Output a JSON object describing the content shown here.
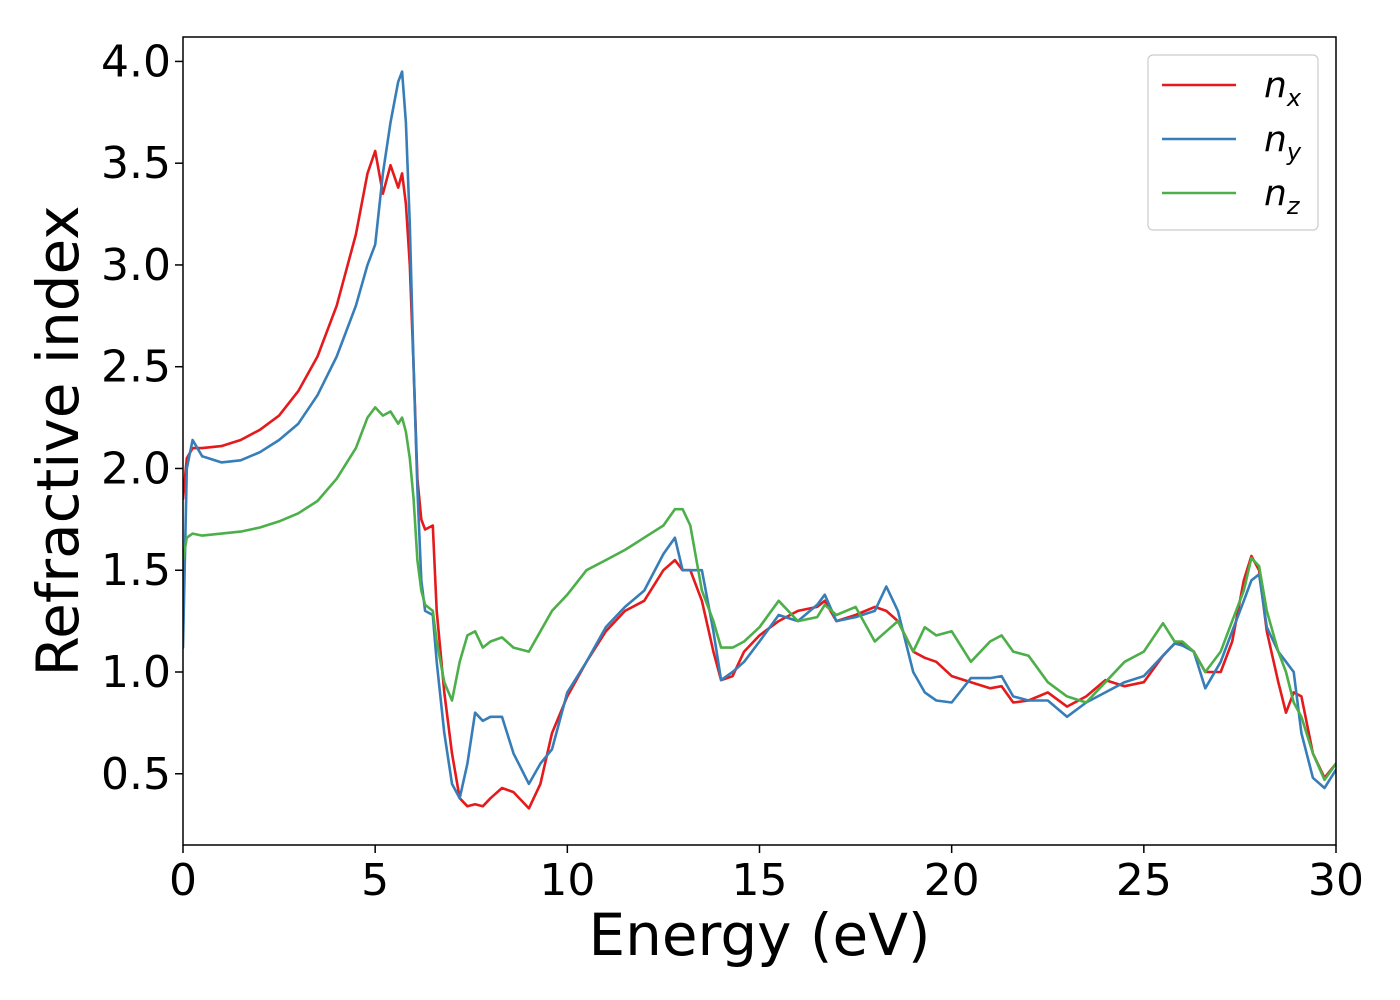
{
  "chart_data": {
    "type": "line",
    "title": "",
    "xlabel": "Energy (eV)",
    "ylabel": "Refractive index",
    "xlim": [
      0,
      30
    ],
    "ylim": [
      0.15,
      4.12
    ],
    "xticks": [
      0,
      5,
      10,
      15,
      20,
      25,
      30
    ],
    "xtick_labels": [
      "0",
      "5",
      "10",
      "15",
      "20",
      "25",
      "30"
    ],
    "yticks": [
      0.5,
      1.0,
      1.5,
      2.0,
      2.5,
      3.0,
      3.5,
      4.0
    ],
    "ytick_labels": [
      "0.5",
      "1.0",
      "1.5",
      "2.0",
      "2.5",
      "3.0",
      "3.5",
      "4.0"
    ],
    "grid": false,
    "legend_position": "top-right",
    "series": [
      {
        "name": "n",
        "subscript": "x",
        "color": "#e41a1c",
        "x": [
          0,
          0.1,
          0.25,
          0.5,
          1,
          1.5,
          2,
          2.5,
          3,
          3.5,
          4,
          4.5,
          4.8,
          5.0,
          5.2,
          5.4,
          5.6,
          5.7,
          5.8,
          5.9,
          6.0,
          6.1,
          6.2,
          6.3,
          6.5,
          6.6,
          6.8,
          7.0,
          7.2,
          7.4,
          7.6,
          7.8,
          8.0,
          8.3,
          8.6,
          9.0,
          9.3,
          9.6,
          10,
          10.5,
          11,
          11.5,
          12,
          12.5,
          12.8,
          13.0,
          13.2,
          13.5,
          13.8,
          14.0,
          14.3,
          14.6,
          15.0,
          15.5,
          16.0,
          16.5,
          16.7,
          17.0,
          17.5,
          18.0,
          18.3,
          18.6,
          19.0,
          19.3,
          19.6,
          20.0,
          20.5,
          21.0,
          21.3,
          21.6,
          22.0,
          22.5,
          23.0,
          23.5,
          24.0,
          24.5,
          25.0,
          25.5,
          25.8,
          26.0,
          26.3,
          26.6,
          27.0,
          27.3,
          27.6,
          27.8,
          28.0,
          28.2,
          28.5,
          28.7,
          28.9,
          29.1,
          29.4,
          29.7,
          30
        ],
        "y": [
          1.85,
          2.05,
          2.1,
          2.1,
          2.11,
          2.14,
          2.19,
          2.26,
          2.38,
          2.55,
          2.8,
          3.15,
          3.45,
          3.56,
          3.35,
          3.49,
          3.38,
          3.45,
          3.3,
          3.0,
          2.5,
          1.95,
          1.75,
          1.7,
          1.72,
          1.3,
          0.9,
          0.6,
          0.38,
          0.34,
          0.35,
          0.34,
          0.38,
          0.43,
          0.41,
          0.33,
          0.45,
          0.7,
          0.88,
          1.05,
          1.2,
          1.3,
          1.35,
          1.5,
          1.55,
          1.5,
          1.5,
          1.35,
          1.1,
          0.96,
          0.98,
          1.1,
          1.18,
          1.25,
          1.3,
          1.32,
          1.35,
          1.25,
          1.28,
          1.32,
          1.3,
          1.25,
          1.1,
          1.07,
          1.05,
          0.98,
          0.95,
          0.92,
          0.93,
          0.85,
          0.86,
          0.9,
          0.83,
          0.88,
          0.96,
          0.93,
          0.95,
          1.08,
          1.14,
          1.14,
          1.1,
          1.0,
          1.0,
          1.15,
          1.45,
          1.57,
          1.5,
          1.2,
          0.95,
          0.8,
          0.9,
          0.88,
          0.6,
          0.48,
          0.55
        ]
      },
      {
        "name": "n",
        "subscript": "y",
        "color": "#377eb8",
        "x": [
          0,
          0.1,
          0.25,
          0.5,
          1,
          1.5,
          2,
          2.5,
          3,
          3.5,
          4,
          4.5,
          4.8,
          5.0,
          5.2,
          5.4,
          5.6,
          5.7,
          5.8,
          5.9,
          6.0,
          6.1,
          6.2,
          6.3,
          6.5,
          6.6,
          6.8,
          7.0,
          7.2,
          7.4,
          7.6,
          7.8,
          8.0,
          8.3,
          8.6,
          9.0,
          9.3,
          9.6,
          10,
          10.5,
          11,
          11.5,
          12,
          12.5,
          12.8,
          13.0,
          13.2,
          13.5,
          13.8,
          14.0,
          14.3,
          14.6,
          15.0,
          15.5,
          16.0,
          16.5,
          16.7,
          17.0,
          17.5,
          18.0,
          18.3,
          18.6,
          19.0,
          19.3,
          19.6,
          20.0,
          20.5,
          21.0,
          21.3,
          21.6,
          22.0,
          22.5,
          23.0,
          23.5,
          24.0,
          24.5,
          25.0,
          25.5,
          25.8,
          26.0,
          26.3,
          26.6,
          27.0,
          27.3,
          27.6,
          27.8,
          28.0,
          28.2,
          28.5,
          28.7,
          28.9,
          29.1,
          29.4,
          29.7,
          30
        ],
        "y": [
          1.12,
          2.0,
          2.14,
          2.06,
          2.03,
          2.04,
          2.08,
          2.14,
          2.22,
          2.36,
          2.55,
          2.8,
          3.0,
          3.1,
          3.45,
          3.7,
          3.9,
          3.95,
          3.7,
          3.2,
          2.5,
          1.9,
          1.45,
          1.3,
          1.28,
          1.05,
          0.7,
          0.45,
          0.38,
          0.55,
          0.8,
          0.76,
          0.78,
          0.78,
          0.6,
          0.45,
          0.55,
          0.62,
          0.9,
          1.05,
          1.22,
          1.32,
          1.4,
          1.58,
          1.66,
          1.5,
          1.5,
          1.5,
          1.2,
          0.96,
          1.0,
          1.05,
          1.15,
          1.28,
          1.25,
          1.33,
          1.38,
          1.25,
          1.27,
          1.3,
          1.42,
          1.3,
          1.0,
          0.9,
          0.86,
          0.85,
          0.97,
          0.97,
          0.98,
          0.88,
          0.86,
          0.86,
          0.78,
          0.85,
          0.9,
          0.95,
          0.98,
          1.08,
          1.14,
          1.13,
          1.1,
          0.92,
          1.05,
          1.2,
          1.35,
          1.45,
          1.48,
          1.22,
          1.1,
          1.05,
          1.0,
          0.7,
          0.48,
          0.43,
          0.52
        ]
      },
      {
        "name": "n",
        "subscript": "z",
        "color": "#4daf4a",
        "x": [
          0,
          0.1,
          0.25,
          0.5,
          1,
          1.5,
          2,
          2.5,
          3,
          3.5,
          4,
          4.5,
          4.8,
          5.0,
          5.2,
          5.4,
          5.6,
          5.7,
          5.8,
          5.9,
          6.0,
          6.1,
          6.2,
          6.3,
          6.5,
          6.6,
          6.8,
          7.0,
          7.2,
          7.4,
          7.6,
          7.8,
          8.0,
          8.3,
          8.6,
          9.0,
          9.3,
          9.6,
          10,
          10.5,
          11,
          11.5,
          12,
          12.5,
          12.8,
          13.0,
          13.2,
          13.5,
          13.8,
          14.0,
          14.3,
          14.6,
          15.0,
          15.5,
          16.0,
          16.5,
          16.7,
          17.0,
          17.5,
          18.0,
          18.3,
          18.6,
          19.0,
          19.3,
          19.6,
          20.0,
          20.5,
          21.0,
          21.3,
          21.6,
          22.0,
          22.5,
          23.0,
          23.5,
          24.0,
          24.5,
          25.0,
          25.5,
          25.8,
          26.0,
          26.3,
          26.6,
          27.0,
          27.3,
          27.6,
          27.8,
          28.0,
          28.2,
          28.5,
          28.7,
          28.9,
          29.1,
          29.4,
          29.7,
          30
        ],
        "y": [
          1.55,
          1.66,
          1.68,
          1.67,
          1.68,
          1.69,
          1.71,
          1.74,
          1.78,
          1.84,
          1.95,
          2.1,
          2.25,
          2.3,
          2.26,
          2.28,
          2.22,
          2.25,
          2.18,
          2.05,
          1.85,
          1.55,
          1.4,
          1.33,
          1.3,
          1.15,
          0.95,
          0.86,
          1.05,
          1.18,
          1.2,
          1.12,
          1.15,
          1.17,
          1.12,
          1.1,
          1.2,
          1.3,
          1.38,
          1.5,
          1.55,
          1.6,
          1.66,
          1.72,
          1.8,
          1.8,
          1.72,
          1.4,
          1.25,
          1.12,
          1.12,
          1.15,
          1.22,
          1.35,
          1.25,
          1.27,
          1.33,
          1.28,
          1.32,
          1.15,
          1.2,
          1.25,
          1.1,
          1.22,
          1.18,
          1.2,
          1.05,
          1.15,
          1.18,
          1.1,
          1.08,
          0.95,
          0.88,
          0.85,
          0.95,
          1.05,
          1.1,
          1.24,
          1.15,
          1.15,
          1.1,
          1.0,
          1.1,
          1.25,
          1.4,
          1.56,
          1.52,
          1.3,
          1.1,
          1.0,
          0.85,
          0.78,
          0.6,
          0.47,
          0.55
        ]
      }
    ]
  }
}
